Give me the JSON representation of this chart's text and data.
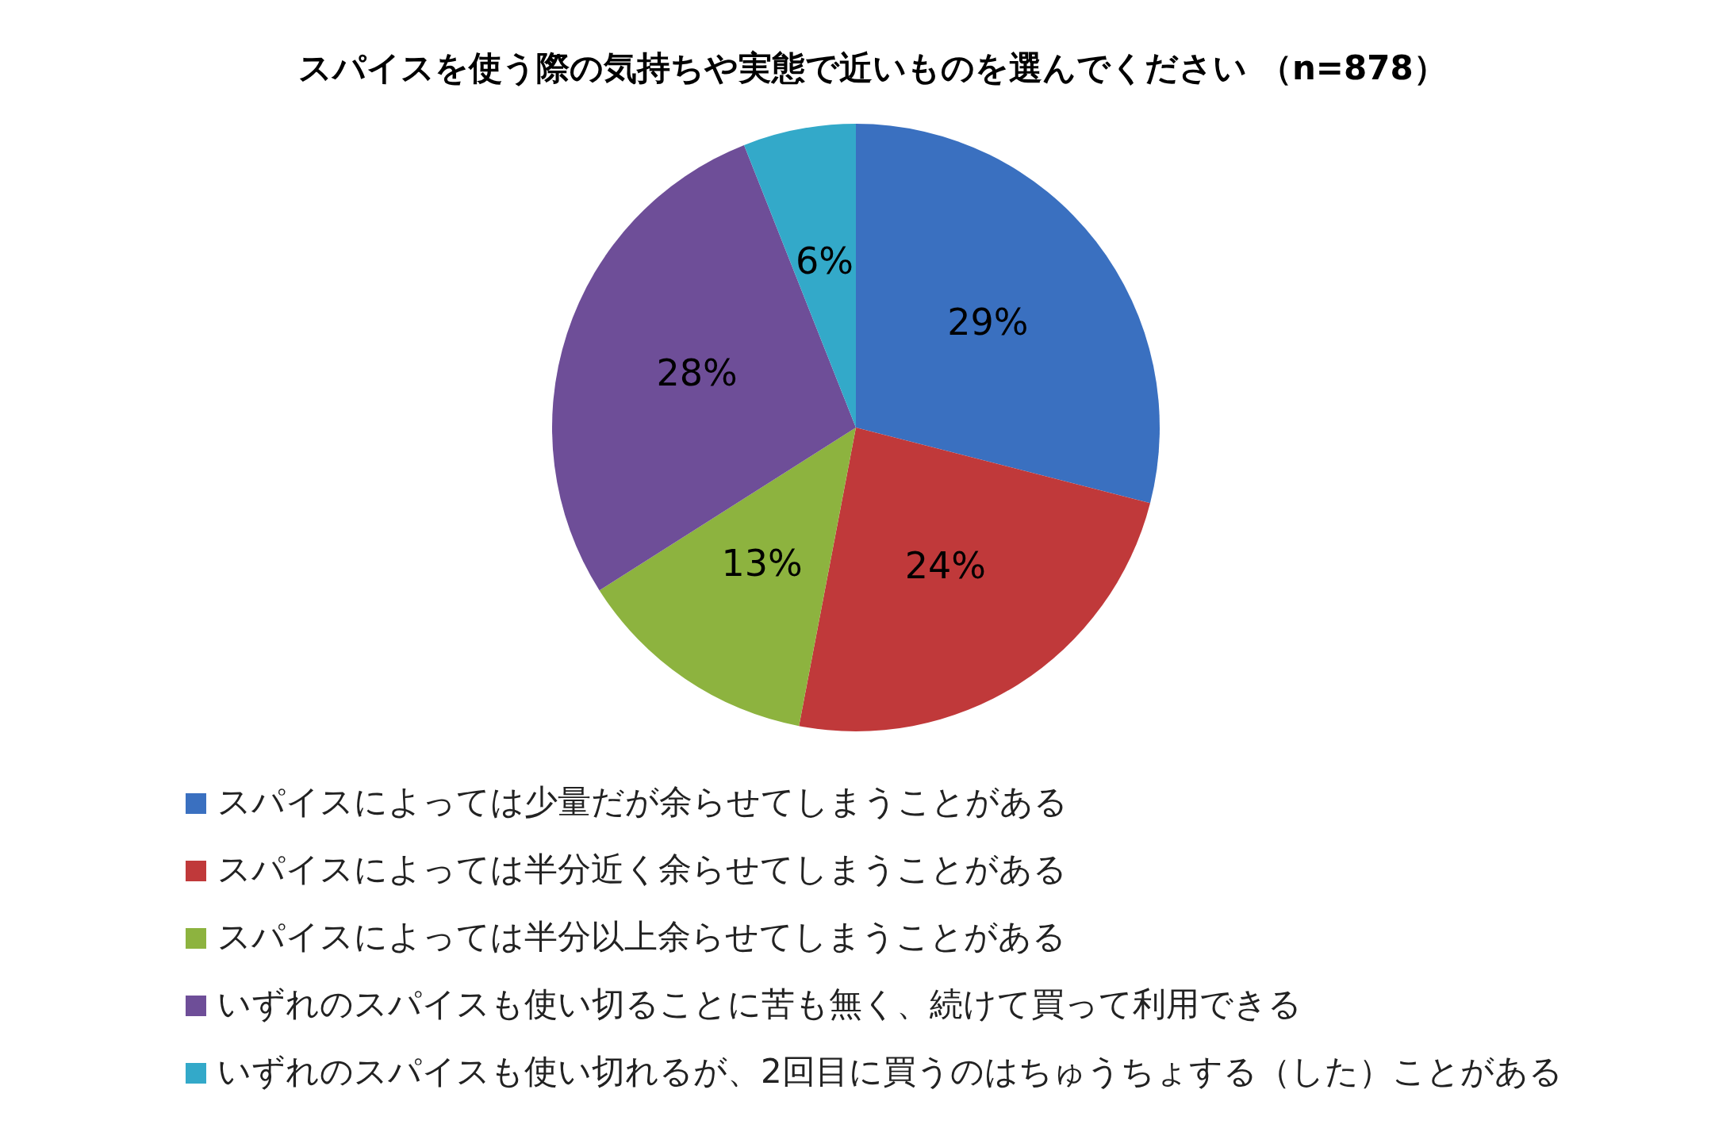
{
  "chart_data": {
    "type": "pie",
    "title": "スパイスを使う際の気持ちや実態で近いものを選んでください （n=878）",
    "categories": [
      "スパイスによっては少量だが余らせてしまうことがある",
      "スパイスによっては半分近く余らせてしまうことがある",
      "スパイスによっては半分以上余らせてしまうことがある",
      "いずれのスパイスも使い切ることに苦も無く、続けて買って利用できる",
      "いずれのスパイスも使い切れるが、2回目に買うのはちゅうちょする（した）ことがある"
    ],
    "values": [
      29,
      24,
      13,
      28,
      6
    ],
    "colors": [
      "#3a70c0",
      "#c0393a",
      "#8db33f",
      "#6e4e98",
      "#33a9c9"
    ],
    "value_labels": [
      "29%",
      "24%",
      "13%",
      "28%",
      "6%"
    ],
    "legend": "bottom left"
  }
}
